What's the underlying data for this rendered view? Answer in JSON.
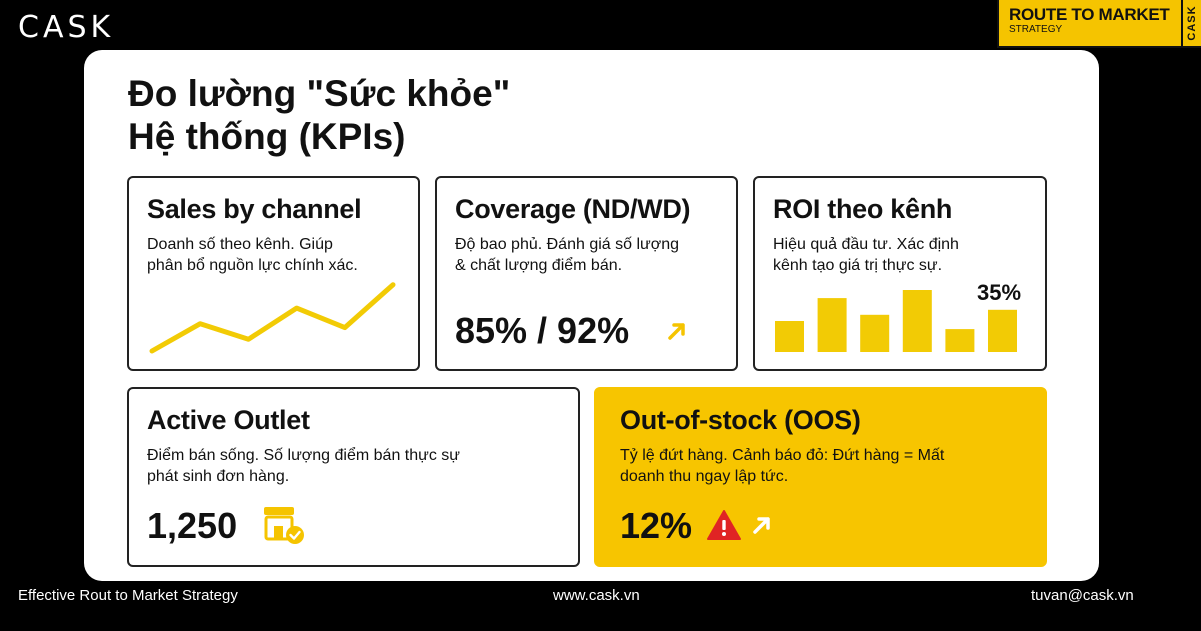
{
  "brand": {
    "logo": "CASK"
  },
  "badge": {
    "title": "ROUTE TO MARKET",
    "subtitle": "STRATEGY",
    "side": "CASK"
  },
  "heading": {
    "line1": "Đo lường \"Sức khỏe\"",
    "line2": "Hệ thống (KPIs)"
  },
  "cards": {
    "sales": {
      "title": "Sales by channel",
      "desc1": "Doanh số theo kênh. Giúp",
      "desc2": "phân bổ nguồn lực chính xác.",
      "trend": [
        0,
        0.35,
        0.15,
        0.55,
        0.3,
        0.85
      ]
    },
    "coverage": {
      "title": "Coverage (ND/WD)",
      "desc1": "Độ bao phủ. Đánh giá số lượng",
      "desc2": "& chất lượng điểm bán.",
      "metric": "85% / 92%",
      "icon": "arrow-up-right-icon"
    },
    "roi": {
      "title": "ROI theo kênh",
      "desc1": "Hiệu quả đầu tư. Xác định",
      "desc2": "kênh tạo giá trị thực sự.",
      "metric": "35%",
      "bars": [
        0.5,
        0.87,
        0.6,
        1.0,
        0.37,
        0.68
      ]
    },
    "active": {
      "title": "Active Outlet",
      "desc1": "Điểm bán sống. Số lượng điểm bán thực sự",
      "desc2": "phát sinh đơn hàng.",
      "metric": "1,250",
      "icon": "store-check-icon"
    },
    "oos": {
      "title": "Out-of-stock (OOS)",
      "desc1": "Tỷ lệ đứt hàng. Cảnh báo đỏ: Đứt hàng = Mất",
      "desc2": "doanh thu ngay lập tức.",
      "metric": "12%",
      "icons": [
        "warning-icon",
        "arrow-up-right-icon"
      ]
    }
  },
  "colors": {
    "accent": "#f5c400",
    "warning": "#e02424",
    "chart": "#f2cb05"
  },
  "footer": {
    "left": "Effective Rout to Market Strategy",
    "center": "www.cask.vn",
    "right": "tuvan@cask.vn"
  }
}
